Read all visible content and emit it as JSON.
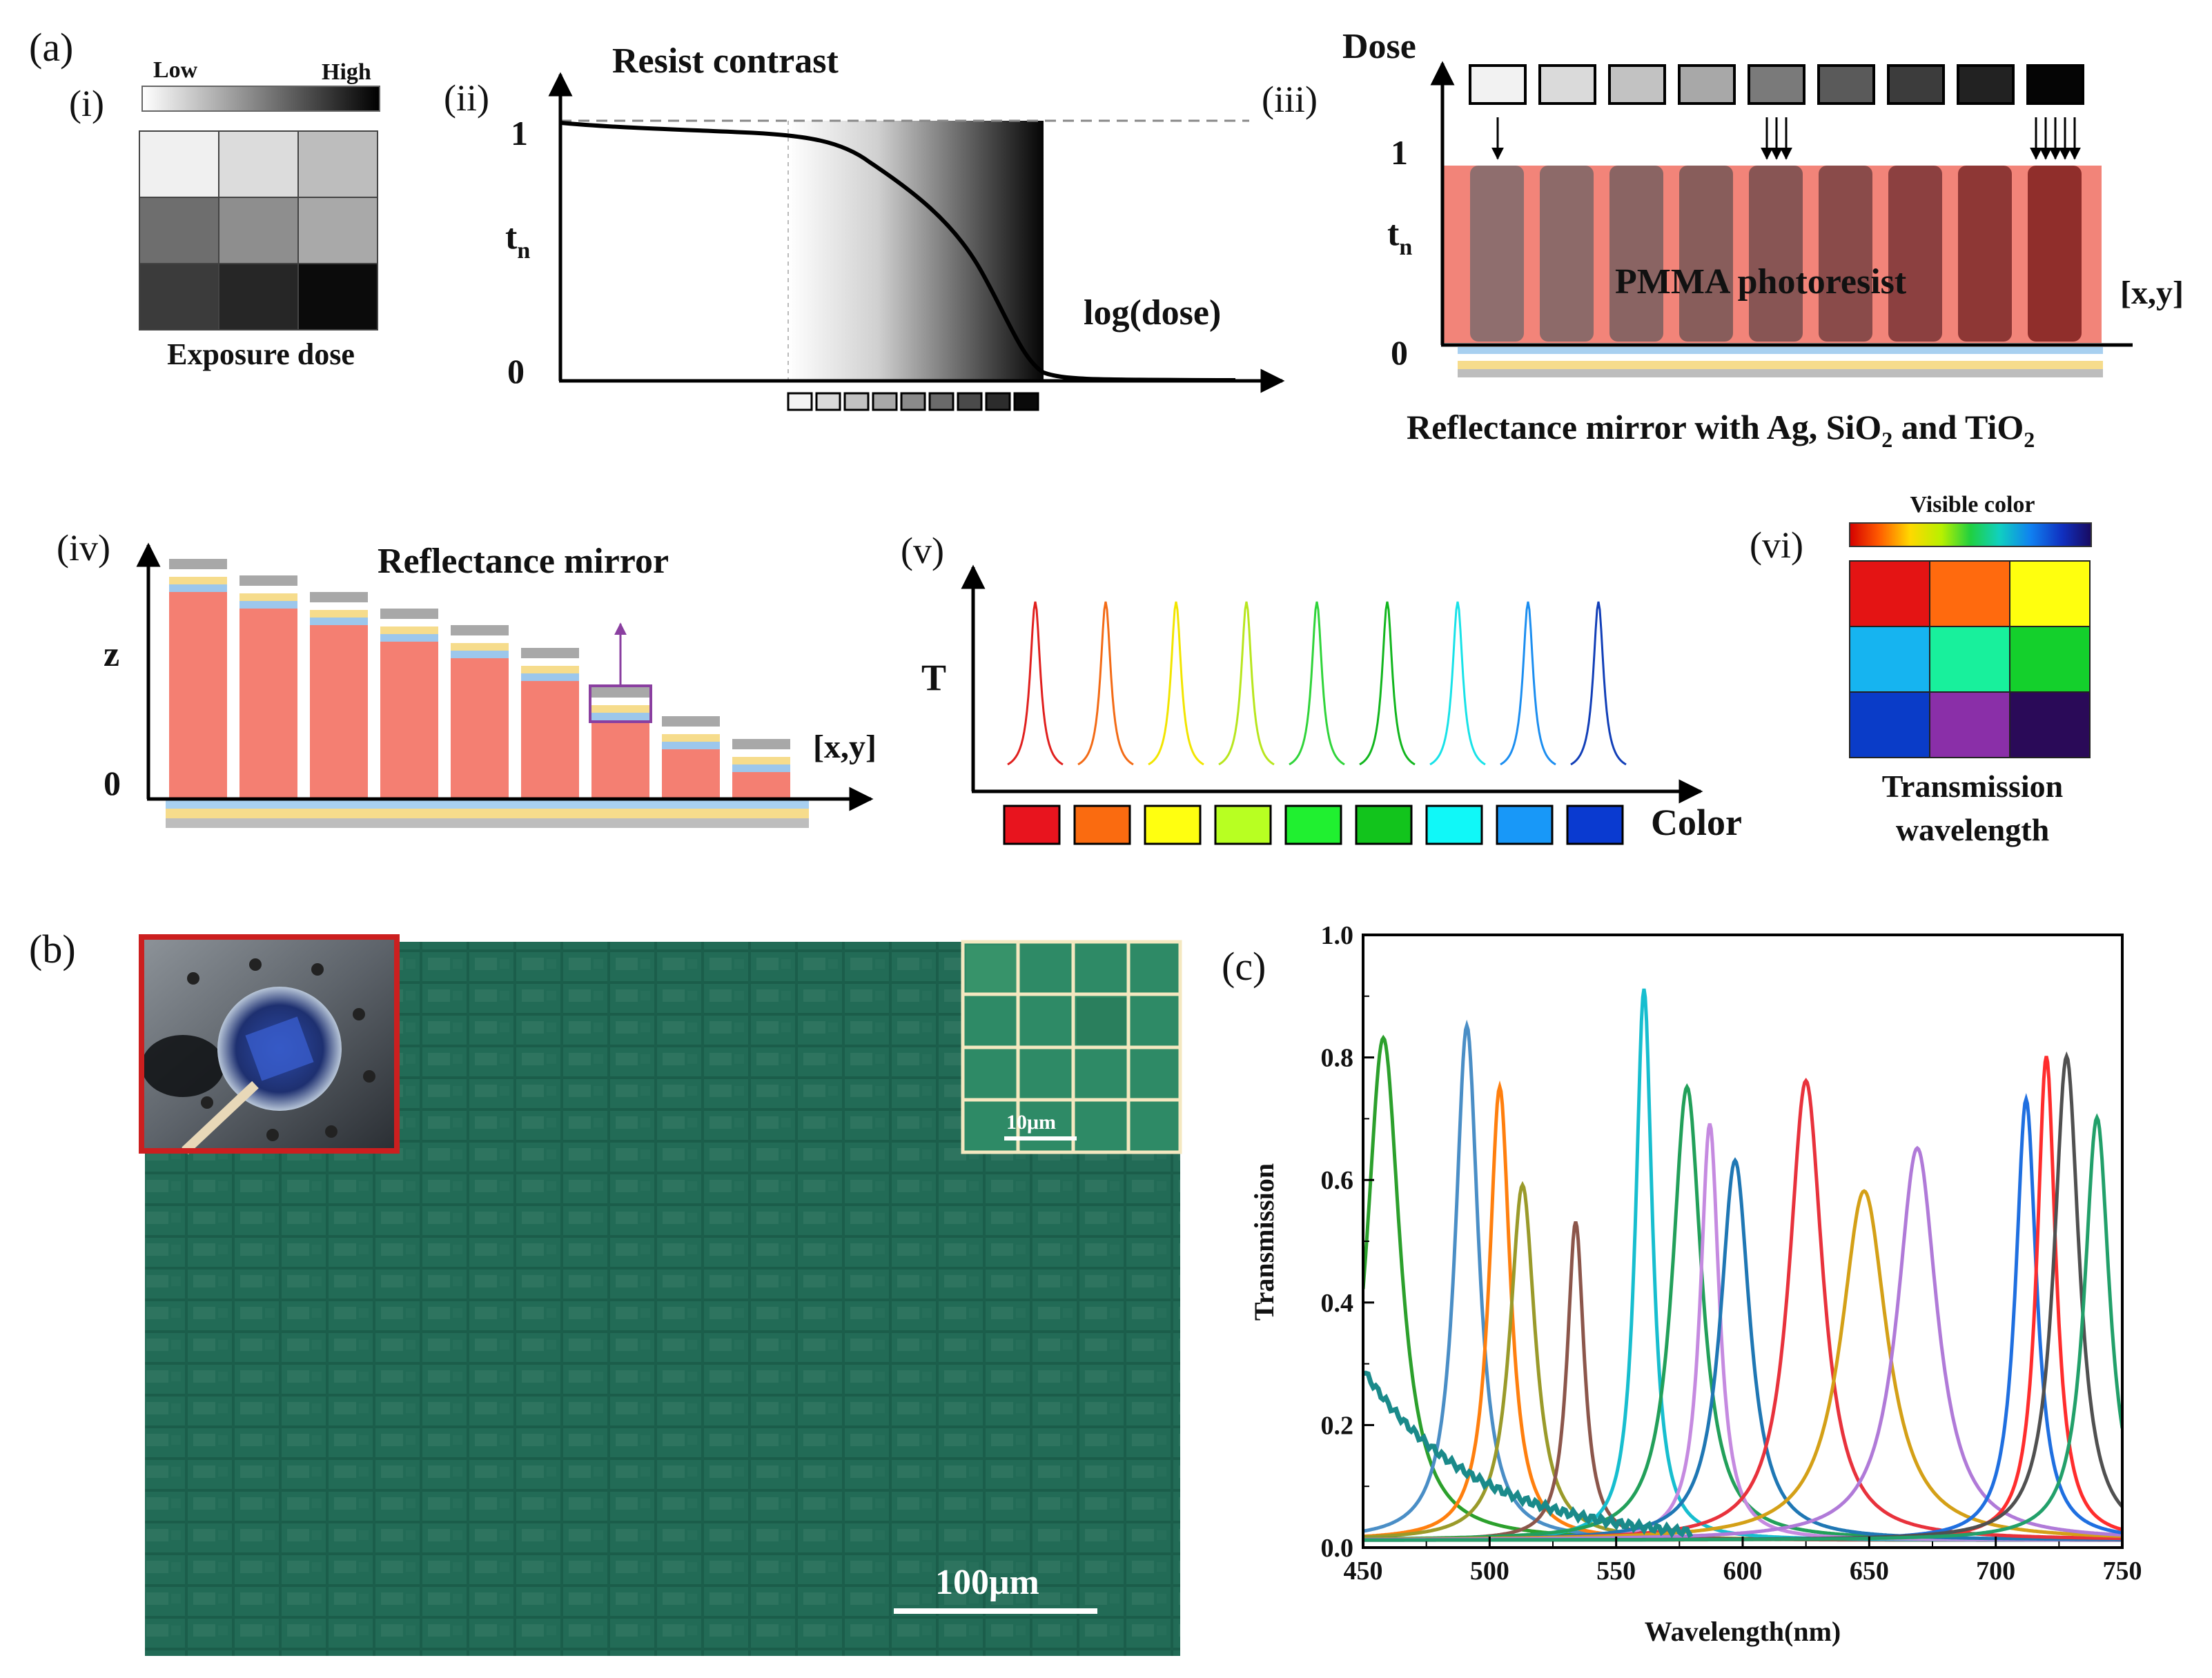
{
  "labels": {
    "a": "(a)",
    "b": "(b)",
    "c": "(c)",
    "i": "(i)",
    "ii": "(ii)",
    "iii": "(iii)",
    "iv": "(iv)",
    "v": "(v)",
    "vi": "(vi)"
  },
  "panel_i": {
    "low": "Low",
    "high": "High",
    "caption": "Exposure dose",
    "grid_colors": [
      "#f0f0f0",
      "#dcdcdc",
      "#bdbdbd",
      "#6e6e6e",
      "#8e8e8e",
      "#a9a9a9",
      "#3b3b3b",
      "#262626",
      "#0b0b0b"
    ]
  },
  "panel_ii": {
    "title": "Resist contrast",
    "y_top": "1",
    "y_bottom": "0",
    "y_label_main": "t",
    "y_label_sub": "n",
    "x_label": "log(dose)",
    "dose_squares": [
      "#f2f2f2",
      "#dadada",
      "#c2c2c2",
      "#a8a8a8",
      "#8a8a8a",
      "#6a6a6a",
      "#4a4a4a",
      "#2c2c2c",
      "#0a0a0a"
    ]
  },
  "panel_iii": {
    "y_title": "Dose",
    "y_top": "1",
    "y_bottom": "0",
    "y_label_main": "t",
    "y_label_sub": "n",
    "x_label": "[x,y]",
    "inside_text": "PMMA photoresist",
    "caption_parts": [
      "Reflectance mirror with Ag, SiO",
      "2",
      " and TiO",
      "2"
    ],
    "dose_squares": [
      "#f2f2f2",
      "#dadada",
      "#c2c2c2",
      "#a8a8a8",
      "#7a7a7a",
      "#5a5a5a",
      "#3c3c3c",
      "#222222",
      "#050505"
    ],
    "pillar_colors": [
      "#8f6e6e",
      "#8d6a69",
      "#8a6463",
      "#885d5b",
      "#885554",
      "#8a4b4a",
      "#8c4040",
      "#8e3735",
      "#902e2b"
    ],
    "arrow_counts": [
      1,
      0,
      0,
      0,
      3,
      0,
      0,
      0,
      5
    ]
  },
  "panel_iv": {
    "title": "Reflectance mirror",
    "y_label": "z",
    "y_bottom": "0",
    "x_label": "[x,y]",
    "stack_heights": [
      1.0,
      0.92,
      0.84,
      0.76,
      0.68,
      0.57,
      0.38,
      0.24,
      0.13
    ]
  },
  "panel_v": {
    "y_label": "T",
    "x_label": "Color",
    "peak_colors": [
      "#e0201e",
      "#f36b16",
      "#f2e500",
      "#b8e61e",
      "#30d43a",
      "#12b61e",
      "#18e2e8",
      "#1c8ef0",
      "#123fb8"
    ],
    "swatch_colors": [
      "#e8141e",
      "#fa6b10",
      "#ffff10",
      "#b8ff22",
      "#20f030",
      "#12c41c",
      "#10f8f8",
      "#1898f8",
      "#0a3ad0"
    ]
  },
  "panel_vi": {
    "bar_title": "Visible color",
    "caption_line1": "Transmission",
    "caption_line2": "wavelength",
    "grid_colors": [
      "#e41414",
      "#ff6a0e",
      "#ffff0e",
      "#16b4f0",
      "#18f09c",
      "#14d02c",
      "#0a3cc8",
      "#8a2fa8",
      "#2a0a58"
    ]
  },
  "panel_b": {
    "scale_main": "100μm",
    "scale_inset": "10μm"
  },
  "chart_data": {
    "type": "line",
    "xlabel": "Wavelength(nm)",
    "ylabel": "Transmission",
    "xlim": [
      450,
      750
    ],
    "ylim": [
      0.0,
      1.0
    ],
    "xticks": [
      "450",
      "500",
      "550",
      "600",
      "650",
      "700",
      "750"
    ],
    "yticks": [
      "0.0",
      "0.2",
      "0.4",
      "0.6",
      "0.8",
      "1.0"
    ],
    "grid": false,
    "series": [
      {
        "color": "#2ca02c",
        "peak_x": 458,
        "peak_y": 0.82,
        "fwhm": 16
      },
      {
        "color": "#4a8ec6",
        "peak_x": 491,
        "peak_y": 0.84,
        "fwhm": 11
      },
      {
        "color": "#ff7f0e",
        "peak_x": 504,
        "peak_y": 0.74,
        "fwhm": 10
      },
      {
        "color": "#9a9a2a",
        "peak_x": 513,
        "peak_y": 0.58,
        "fwhm": 12
      },
      {
        "color": "#8c564b",
        "peak_x": 534,
        "peak_y": 0.52,
        "fwhm": 8
      },
      {
        "color": "#17becf",
        "peak_x": 561,
        "peak_y": 0.9,
        "fwhm": 8
      },
      {
        "color": "#22a05a",
        "peak_x": 578,
        "peak_y": 0.74,
        "fwhm": 14
      },
      {
        "color": "#c58ae0",
        "peak_x": 587,
        "peak_y": 0.68,
        "fwhm": 9
      },
      {
        "color": "#1f77b4",
        "peak_x": 597,
        "peak_y": 0.62,
        "fwhm": 14
      },
      {
        "color": "#e8323c",
        "peak_x": 625,
        "peak_y": 0.75,
        "fwhm": 16
      },
      {
        "color": "#d4a017",
        "peak_x": 648,
        "peak_y": 0.57,
        "fwhm": 22
      },
      {
        "color": "#b07ad8",
        "peak_x": 669,
        "peak_y": 0.64,
        "fwhm": 19
      },
      {
        "color": "#1f6fe0",
        "peak_x": 712,
        "peak_y": 0.72,
        "fwhm": 10
      },
      {
        "color": "#ff2d2d",
        "peak_x": 720,
        "peak_y": 0.79,
        "fwhm": 9
      },
      {
        "color": "#505050",
        "peak_x": 728,
        "peak_y": 0.79,
        "fwhm": 12
      },
      {
        "color": "#22a06a",
        "peak_x": 740,
        "peak_y": 0.69,
        "fwhm": 12
      }
    ]
  }
}
